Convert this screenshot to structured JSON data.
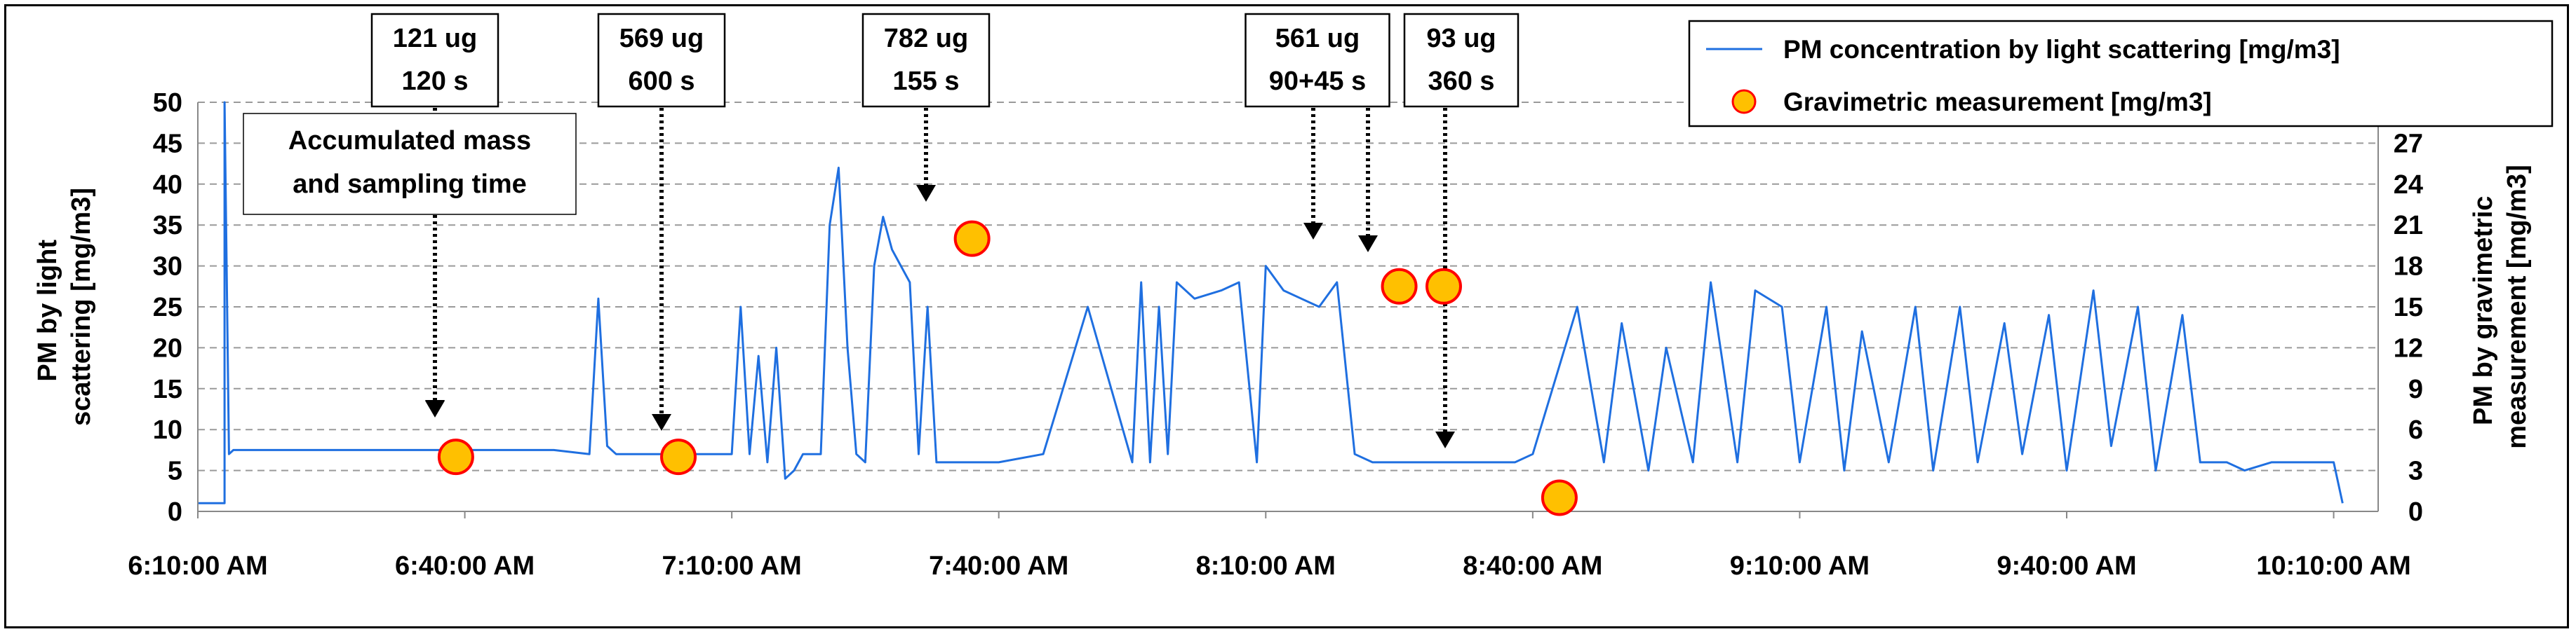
{
  "chart_data": {
    "type": "line",
    "title": "",
    "xlabel": "",
    "ylabel_left": "PM by light scattering [mg/m3]",
    "ylabel_left_lines": [
      "PM by light",
      "scattering [mg/m3]"
    ],
    "ylabel_right": "PM by gravimetric measurement [mg/m3]",
    "ylabel_right_lines": [
      "PM by gravimetric",
      "measurement [mg/m3]"
    ],
    "x_ticks": [
      "6:10:00 AM",
      "6:40:00 AM",
      "7:10:00 AM",
      "7:40:00 AM",
      "8:10:00 AM",
      "8:40:00 AM",
      "9:10:00 AM",
      "9:40:00 AM",
      "10:10:00 AM"
    ],
    "x_range": [
      "6:10",
      "10:15"
    ],
    "ylim_left": [
      0,
      50
    ],
    "yticks_left": [
      0,
      5,
      10,
      15,
      20,
      25,
      30,
      35,
      40,
      45,
      50
    ],
    "ylim_right": [
      0,
      30
    ],
    "yticks_right": [
      0,
      3,
      6,
      9,
      12,
      15,
      18,
      21,
      24,
      27
    ],
    "grid": "horizontal dashed",
    "legend_position": "top-right",
    "colors": {
      "line": "#1f6fe0",
      "marker_fill": "#ffc000",
      "marker_edge": "#ff0000"
    },
    "series": [
      {
        "name": "PM concentration by light scattering [mg/m3]",
        "type": "line",
        "x": [
          "6:10",
          "6:13",
          "6:13",
          "6:13.5",
          "6:14",
          "6:15",
          "6:20",
          "6:30",
          "6:40",
          "6:50",
          "6:54",
          "6:55",
          "6:56",
          "6:57",
          "7:00",
          "7:05",
          "7:10",
          "7:11",
          "7:12",
          "7:13",
          "7:14",
          "7:15",
          "7:16",
          "7:17",
          "7:18",
          "7:19",
          "7:20",
          "7:21",
          "7:22",
          "7:23",
          "7:24",
          "7:25",
          "7:26",
          "7:27",
          "7:28",
          "7:29",
          "7:30",
          "7:31",
          "7:32",
          "7:33",
          "7:34",
          "7:35",
          "7:36",
          "7:37",
          "7:38",
          "7:39",
          "7:40",
          "7:45",
          "7:50",
          "7:55",
          "7:56",
          "7:57",
          "7:58",
          "7:59",
          "8:00",
          "8:02",
          "8:05",
          "8:07",
          "8:09",
          "8:10",
          "8:12",
          "8:14",
          "8:16",
          "8:18",
          "8:20",
          "8:22",
          "8:24",
          "8:26",
          "8:28",
          "8:30",
          "8:32",
          "8:35",
          "8:38",
          "8:40",
          "8:45",
          "8:48",
          "8:50",
          "8:53",
          "8:55",
          "8:58",
          "9:00",
          "9:03",
          "9:05",
          "9:08",
          "9:10",
          "9:13",
          "9:15",
          "9:17",
          "9:20",
          "9:23",
          "9:25",
          "9:28",
          "9:30",
          "9:33",
          "9:35",
          "9:38",
          "9:40",
          "9:43",
          "9:45",
          "9:48",
          "9:50",
          "9:53",
          "9:55",
          "9:58",
          "10:00",
          "10:03",
          "10:05",
          "10:08",
          "10:10",
          "10:11"
        ],
        "y": [
          1,
          1,
          50,
          7,
          7.5,
          7.5,
          7.5,
          7.5,
          7.5,
          7.5,
          7,
          26,
          8,
          7,
          7,
          7,
          7,
          25,
          7,
          19,
          6,
          20,
          4,
          5,
          7,
          7,
          7,
          35,
          42,
          20,
          7,
          6,
          30,
          36,
          32,
          30,
          28,
          7,
          25,
          6,
          6,
          6,
          6,
          6,
          6,
          6,
          6,
          7,
          25,
          6,
          28,
          6,
          25,
          7,
          28,
          26,
          27,
          28,
          6,
          30,
          27,
          26,
          25,
          28,
          7,
          6,
          6,
          6,
          6,
          6,
          6,
          6,
          6,
          7,
          25,
          6,
          23,
          5,
          20,
          6,
          28,
          6,
          27,
          25,
          6,
          25,
          5,
          22,
          6,
          25,
          5,
          25,
          6,
          23,
          7,
          24,
          5,
          27,
          8,
          25,
          5,
          24,
          6,
          6,
          5,
          6,
          6,
          6,
          6,
          1
        ]
      },
      {
        "name": "Gravimetric measurement [mg/m3]",
        "type": "scatter",
        "x": [
          "6:39",
          "7:04",
          "7:37",
          "8:25",
          "8:30",
          "8:43"
        ],
        "y": [
          4,
          4,
          20,
          16.5,
          16.5,
          1
        ]
      }
    ],
    "annotations": [
      {
        "lines": [
          "121 ug",
          "120 s"
        ],
        "target": "6:39"
      },
      {
        "lines": [
          "569 ug",
          "600 s"
        ],
        "target": "7:04"
      },
      {
        "lines": [
          "782 ug",
          "155 s"
        ],
        "target": "7:37"
      },
      {
        "lines": [
          "561 ug",
          "90+45 s"
        ],
        "target": "8:25, 8:30"
      },
      {
        "lines": [
          "93 ug",
          "360 s"
        ],
        "target": "8:43"
      },
      {
        "lines": [
          "Accumulated mass",
          "and sampling time"
        ],
        "target": "6:39"
      }
    ]
  }
}
